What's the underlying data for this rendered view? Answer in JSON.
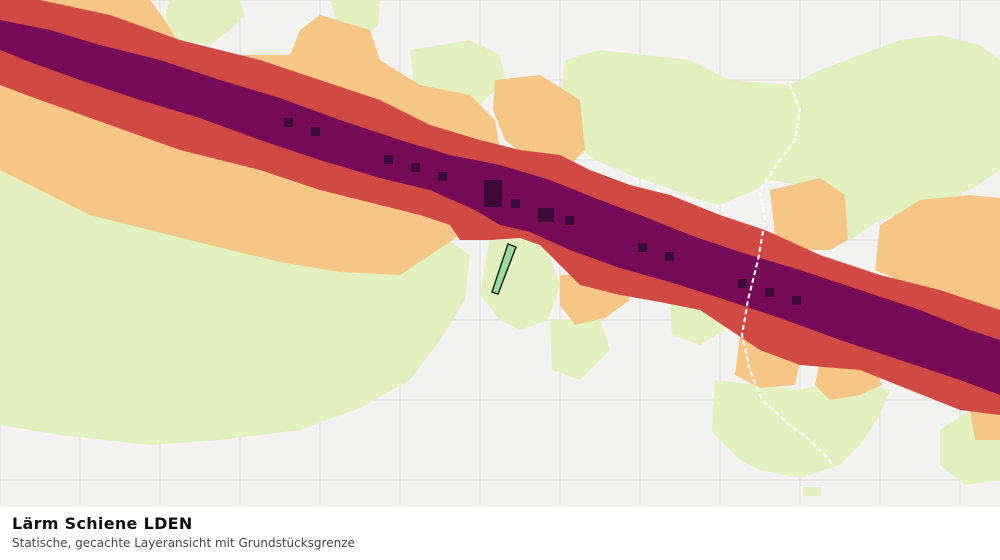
{
  "caption": {
    "title": "Lärm Schiene LDEN",
    "subtitle": "Statische, gecachte Layeransicht mit Grundstücksgrenze"
  },
  "map": {
    "background_color": "#f2f3f1",
    "grid_color": "#dedfdc",
    "noise_classes": [
      {
        "class": "very-high",
        "color": "#770a56"
      },
      {
        "class": "high",
        "color": "#d04a44"
      },
      {
        "class": "medium",
        "color": "#f5c685"
      },
      {
        "class": "low",
        "color": "#e3f1c1"
      }
    ],
    "hotspot_color": "#3b0a36",
    "parcel": {
      "fill": "#9fd9a2",
      "stroke": "#1d2d1d"
    },
    "boundary_line_color": "#ffffff"
  }
}
